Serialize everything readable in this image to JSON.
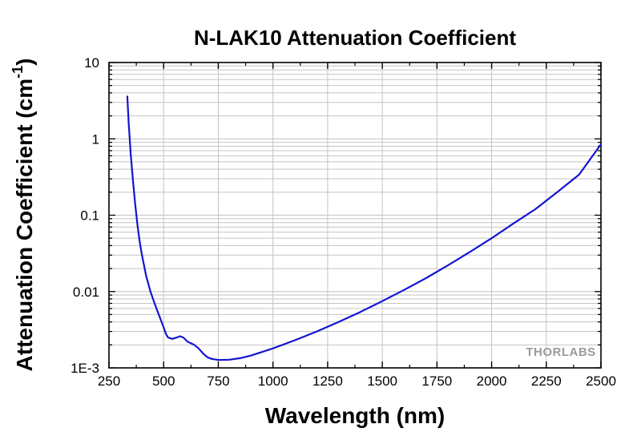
{
  "chart_data": {
    "type": "line",
    "title": "N-LAK10 Attenuation Coefficient",
    "xlabel": "Wavelength (nm)",
    "ylabel_main": "Attenuation Coefficient (cm",
    "ylabel_sup": "-1",
    "ylabel_close": ")",
    "xlim": [
      250,
      2500
    ],
    "ylim": [
      0.001,
      10
    ],
    "yscale": "log",
    "grid": true,
    "x_ticks": [
      250,
      500,
      750,
      1000,
      1250,
      1500,
      1750,
      2000,
      2250,
      2500
    ],
    "x_tick_labels": [
      "250",
      "500",
      "750",
      "1000",
      "1250",
      "1500",
      "1750",
      "2000",
      "2250",
      "2500"
    ],
    "y_ticks": [
      0.001,
      0.01,
      0.1,
      1,
      10
    ],
    "y_tick_labels": [
      "1E-3",
      "0.01",
      "0.1",
      "1",
      "10"
    ],
    "series": [
      {
        "color": "#1414d2",
        "points": [
          [
            334,
            3.6
          ],
          [
            340,
            1.6
          ],
          [
            350,
            0.6
          ],
          [
            360,
            0.28
          ],
          [
            370,
            0.14
          ],
          [
            380,
            0.075
          ],
          [
            390,
            0.046
          ],
          [
            400,
            0.031
          ],
          [
            420,
            0.016
          ],
          [
            440,
            0.01
          ],
          [
            460,
            0.0068
          ],
          [
            480,
            0.0048
          ],
          [
            500,
            0.0034
          ],
          [
            510,
            0.0028
          ],
          [
            520,
            0.0025
          ],
          [
            540,
            0.0024
          ],
          [
            560,
            0.0025
          ],
          [
            575,
            0.0026
          ],
          [
            590,
            0.0025
          ],
          [
            610,
            0.0022
          ],
          [
            640,
            0.002
          ],
          [
            660,
            0.0018
          ],
          [
            680,
            0.00155
          ],
          [
            700,
            0.00138
          ],
          [
            720,
            0.00131
          ],
          [
            750,
            0.00127
          ],
          [
            800,
            0.00128
          ],
          [
            850,
            0.00134
          ],
          [
            900,
            0.00145
          ],
          [
            1000,
            0.0018
          ],
          [
            1100,
            0.0023
          ],
          [
            1200,
            0.003
          ],
          [
            1300,
            0.004
          ],
          [
            1400,
            0.0054
          ],
          [
            1500,
            0.0075
          ],
          [
            1600,
            0.0105
          ],
          [
            1700,
            0.015
          ],
          [
            1800,
            0.022
          ],
          [
            1900,
            0.033
          ],
          [
            2000,
            0.05
          ],
          [
            2100,
            0.078
          ],
          [
            2200,
            0.12
          ],
          [
            2300,
            0.2
          ],
          [
            2400,
            0.34
          ],
          [
            2500,
            0.85
          ]
        ]
      }
    ],
    "watermark_text": "THORLABS"
  }
}
